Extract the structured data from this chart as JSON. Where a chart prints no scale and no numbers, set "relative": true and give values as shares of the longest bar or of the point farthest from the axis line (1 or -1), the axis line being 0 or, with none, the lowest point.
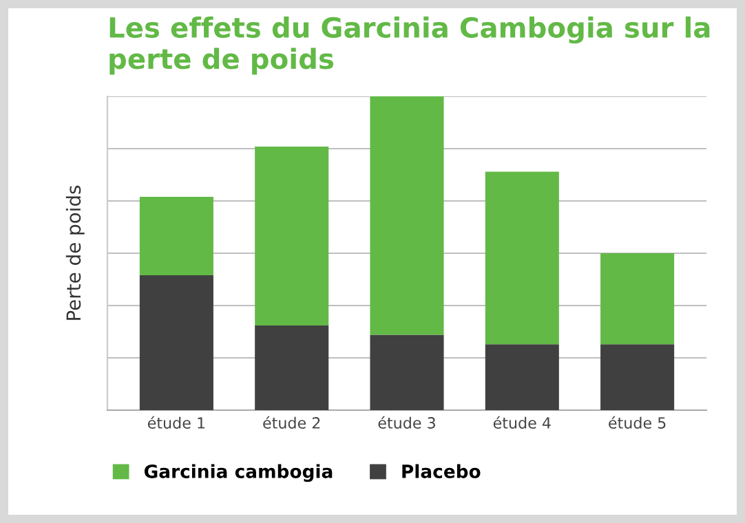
{
  "chart_data": {
    "type": "bar",
    "title": "Les effets du Garcinia Cambogia sur la perte de poids",
    "ylabel": "Perte de poids",
    "categories": [
      "étude 1",
      "étude 2",
      "étude 3",
      "étude 4",
      "étude 5"
    ],
    "stacked": true,
    "relative": true,
    "grid": "y",
    "legend": "bottom left",
    "series": [
      {
        "name": "Placebo",
        "color": "#404040",
        "values": [
          0.43,
          0.27,
          0.24,
          0.21,
          0.21
        ]
      },
      {
        "name": "Garcinia cambogia",
        "color": "#62b946",
        "values": [
          0.25,
          0.57,
          0.76,
          0.55,
          0.29
        ]
      }
    ]
  }
}
